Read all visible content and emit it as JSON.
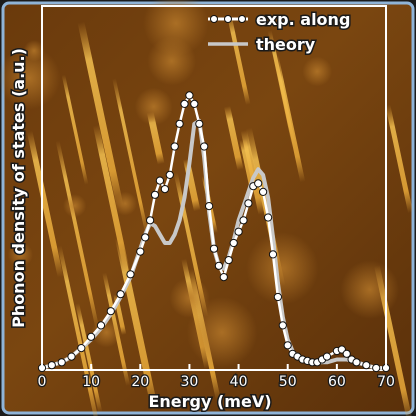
{
  "chart_data": {
    "type": "line",
    "title": "",
    "xlabel": "Energy (meV)",
    "ylabel": "Phonon density of states (a.u.)",
    "xlim": [
      0,
      70
    ],
    "ylim": [
      0,
      1.0
    ],
    "x_ticks": [
      "0",
      "10",
      "20",
      "30",
      "40",
      "50",
      "60",
      "70"
    ],
    "y_ticks": [],
    "grid": false,
    "legend_position": "top-right",
    "background": "STM-style amber surface image (photographic backdrop)",
    "series": [
      {
        "name": "exp. along",
        "style": "line-with-open-circles",
        "color": "#ffffff",
        "x": [
          0,
          2,
          4,
          6,
          8,
          10,
          12,
          14,
          16,
          18,
          20,
          21,
          22,
          23,
          24,
          25,
          26,
          27,
          28,
          29,
          30,
          31,
          32,
          33,
          34,
          35,
          36,
          37,
          38,
          39,
          40,
          41,
          42,
          43,
          44,
          45,
          46,
          47,
          48,
          49,
          50,
          51,
          52,
          53,
          54,
          55,
          56,
          57,
          58,
          60,
          61,
          62,
          63,
          64,
          66,
          68,
          70
        ],
        "y": [
          0.0,
          0.01,
          0.02,
          0.04,
          0.07,
          0.11,
          0.15,
          0.2,
          0.26,
          0.33,
          0.41,
          0.46,
          0.52,
          0.61,
          0.66,
          0.63,
          0.68,
          0.78,
          0.86,
          0.93,
          0.96,
          0.93,
          0.86,
          0.78,
          0.57,
          0.42,
          0.36,
          0.32,
          0.38,
          0.44,
          0.48,
          0.52,
          0.58,
          0.64,
          0.65,
          0.62,
          0.53,
          0.4,
          0.25,
          0.15,
          0.08,
          0.05,
          0.04,
          0.03,
          0.025,
          0.02,
          0.02,
          0.03,
          0.04,
          0.06,
          0.065,
          0.05,
          0.03,
          0.02,
          0.01,
          0.0,
          0.0
        ]
      },
      {
        "name": "theory",
        "style": "line",
        "color": "#c8c8c8",
        "x": [
          0,
          2,
          4,
          6,
          8,
          10,
          12,
          14,
          16,
          18,
          20,
          21,
          22,
          23,
          24,
          25,
          26,
          27,
          28,
          29,
          30,
          31,
          32,
          33,
          34,
          35,
          36,
          37,
          38,
          39,
          40,
          41,
          42,
          43,
          44,
          45,
          46,
          47,
          48,
          49,
          50,
          51,
          52,
          53,
          54,
          55,
          56,
          58,
          60,
          62,
          64,
          66,
          68,
          70
        ],
        "y": [
          0.0,
          0.01,
          0.02,
          0.04,
          0.07,
          0.1,
          0.14,
          0.19,
          0.25,
          0.32,
          0.42,
          0.47,
          0.51,
          0.5,
          0.47,
          0.44,
          0.44,
          0.47,
          0.52,
          0.6,
          0.72,
          0.86,
          0.87,
          0.74,
          0.55,
          0.42,
          0.36,
          0.35,
          0.39,
          0.45,
          0.52,
          0.57,
          0.62,
          0.67,
          0.7,
          0.68,
          0.6,
          0.46,
          0.3,
          0.18,
          0.1,
          0.06,
          0.04,
          0.03,
          0.02,
          0.02,
          0.02,
          0.02,
          0.03,
          0.03,
          0.02,
          0.01,
          0.0,
          0.0
        ]
      }
    ]
  },
  "colors": {
    "frame": "#ffffff",
    "text": "#ffffff",
    "text_outline": "#1a1a1a",
    "outer_border": "#8fb4d8"
  }
}
